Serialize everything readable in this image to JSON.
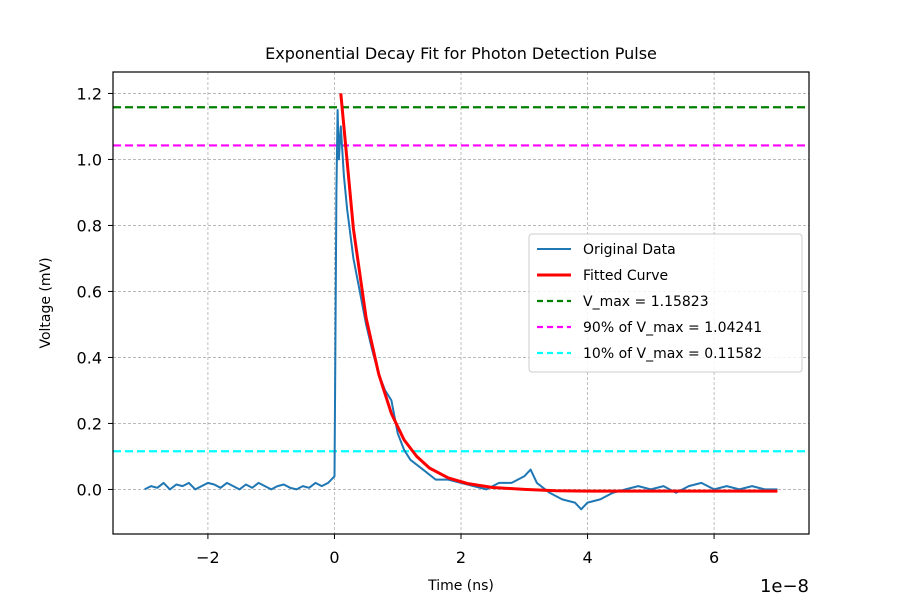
{
  "chart_data": {
    "type": "line",
    "title": "Exponential Decay Fit for Photon Detection Pulse",
    "xlabel": "Time (ns)",
    "ylabel": "Voltage (mV)",
    "x_offset_label": "1e−8",
    "xlim": [
      -3.5e-08,
      7.5e-08
    ],
    "ylim": [
      -0.135,
      1.265
    ],
    "x_ticks": [
      -2e-08,
      0,
      2e-08,
      4e-08,
      6e-08
    ],
    "x_tick_labels": [
      "−2",
      "0",
      "2",
      "4",
      "6"
    ],
    "y_ticks": [
      0.0,
      0.2,
      0.4,
      0.6,
      0.8,
      1.0,
      1.2
    ],
    "y_tick_labels": [
      "0.0",
      "0.2",
      "0.4",
      "0.6",
      "0.8",
      "1.0",
      "1.2"
    ],
    "grid": true,
    "legend_position": "center-right",
    "series": [
      {
        "name": "Original Data",
        "style": "solid",
        "color": "#1f77b4",
        "x": [
          -3e-08,
          -2.9e-08,
          -2.8e-08,
          -2.7e-08,
          -2.6e-08,
          -2.5e-08,
          -2.4e-08,
          -2.3e-08,
          -2.2e-08,
          -2.1e-08,
          -2e-08,
          -1.9e-08,
          -1.8e-08,
          -1.7e-08,
          -1.6e-08,
          -1.5e-08,
          -1.4e-08,
          -1.3e-08,
          -1.2e-08,
          -1.1e-08,
          -1e-08,
          -9e-09,
          -8e-09,
          -7e-09,
          -6e-09,
          -5e-09,
          -4e-09,
          -3e-09,
          -2e-09,
          -1e-09,
          0.0,
          1e-10,
          3e-10,
          5e-10,
          7e-10,
          1e-09,
          1.5e-09,
          2e-09,
          3e-09,
          4e-09,
          5e-09,
          6e-09,
          7e-09,
          8e-09,
          9e-09,
          1e-08,
          1.1e-08,
          1.2e-08,
          1.4e-08,
          1.6e-08,
          1.8e-08,
          2e-08,
          2.2e-08,
          2.4e-08,
          2.6e-08,
          2.8e-08,
          3e-08,
          3.1e-08,
          3.2e-08,
          3.4e-08,
          3.6e-08,
          3.8e-08,
          3.9e-08,
          4e-08,
          4.2e-08,
          4.4e-08,
          4.6e-08,
          4.8e-08,
          5e-08,
          5.2e-08,
          5.4e-08,
          5.6e-08,
          5.8e-08,
          6e-08,
          6.2e-08,
          6.4e-08,
          6.6e-08,
          6.8e-08,
          7e-08
        ],
        "y": [
          0.0,
          0.01,
          0.005,
          0.02,
          0.0,
          0.015,
          0.01,
          0.02,
          0.0,
          0.01,
          0.02,
          0.015,
          0.005,
          0.02,
          0.01,
          0.0,
          0.015,
          0.005,
          0.02,
          0.01,
          0.0,
          0.01,
          0.015,
          0.005,
          0.0,
          0.01,
          0.005,
          0.02,
          0.01,
          0.02,
          0.04,
          0.3,
          0.9,
          1.15,
          1.0,
          1.1,
          0.95,
          0.85,
          0.7,
          0.6,
          0.5,
          0.42,
          0.35,
          0.3,
          0.27,
          0.17,
          0.12,
          0.09,
          0.06,
          0.03,
          0.03,
          0.02,
          0.01,
          0.0,
          0.02,
          0.02,
          0.04,
          0.06,
          0.02,
          -0.01,
          -0.03,
          -0.04,
          -0.06,
          -0.04,
          -0.03,
          -0.01,
          0.0,
          0.01,
          0.0,
          0.01,
          -0.01,
          0.01,
          0.02,
          0.0,
          0.01,
          0.0,
          0.01,
          0.0,
          0.0
        ]
      },
      {
        "name": "Fitted Curve",
        "style": "solid",
        "color": "#ff0000",
        "x": [
          1e-09,
          3e-09,
          5e-09,
          7e-09,
          9e-09,
          1.1e-08,
          1.3e-08,
          1.5e-08,
          1.8e-08,
          2.1e-08,
          2.5e-08,
          3e-08,
          3.5e-08,
          4e-08,
          5e-08,
          6e-08,
          7e-08
        ],
        "y": [
          1.2,
          0.79,
          0.52,
          0.35,
          0.23,
          0.15,
          0.1,
          0.065,
          0.035,
          0.018,
          0.006,
          0.0,
          -0.004,
          -0.005,
          -0.005,
          -0.005,
          -0.005
        ]
      }
    ],
    "hlines": [
      {
        "name": "V_max = 1.15823",
        "value": 1.15823,
        "color": "#008000"
      },
      {
        "name": "90% of V_max = 1.04241",
        "value": 1.04241,
        "color": "#ff00ff"
      },
      {
        "name": "10% of V_max = 0.11582",
        "value": 0.11582,
        "color": "#00ffff"
      }
    ]
  }
}
